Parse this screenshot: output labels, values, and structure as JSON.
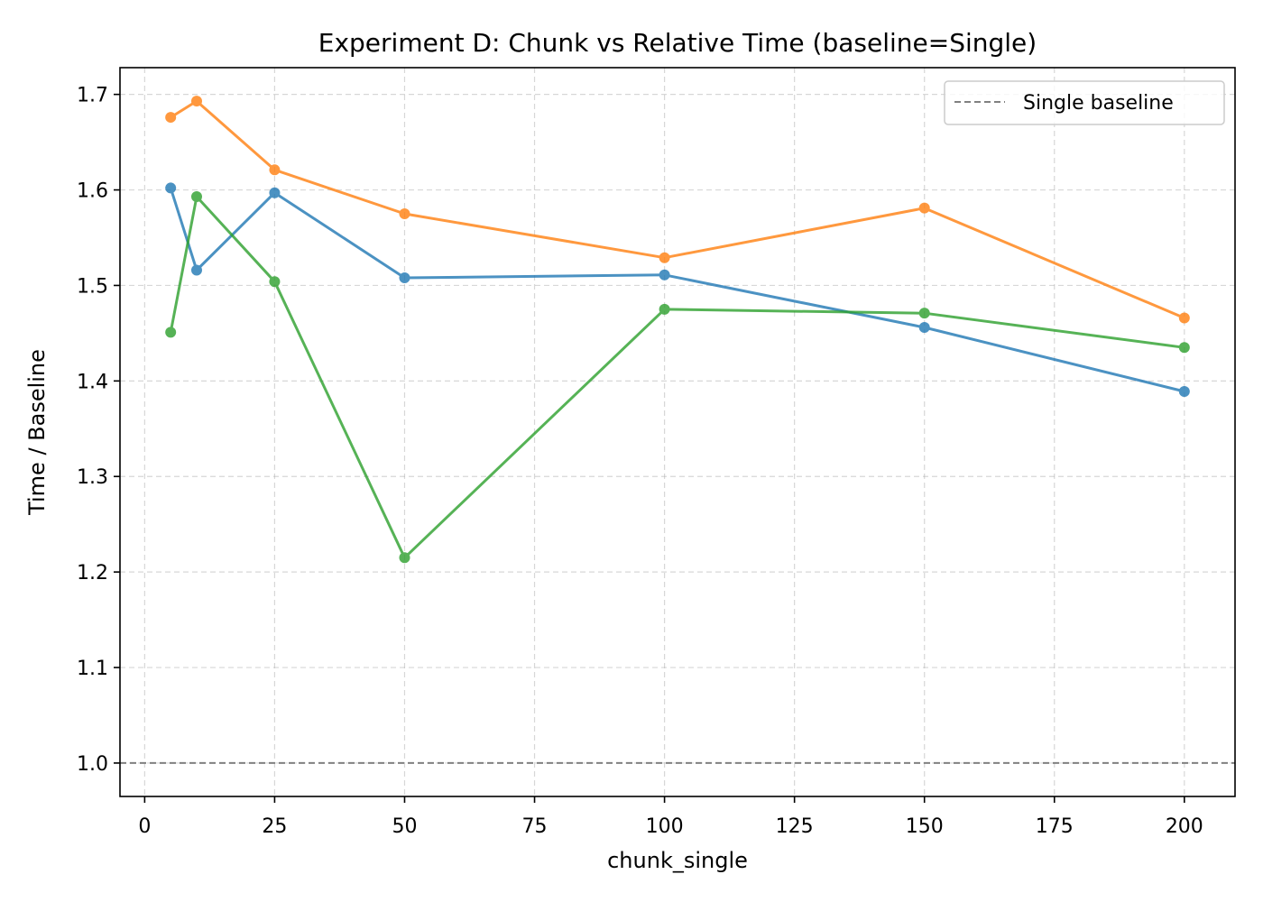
{
  "chart_data": {
    "type": "line",
    "title": "Experiment D: Chunk vs Relative Time (baseline=Single)",
    "xlabel": "chunk_single",
    "ylabel": "Time / Baseline",
    "xlim": [
      -4.75,
      209.75
    ],
    "ylim": [
      0.965,
      1.728
    ],
    "xticks": [
      0,
      25,
      50,
      75,
      100,
      125,
      150,
      175,
      200
    ],
    "yticks": [
      1.0,
      1.1,
      1.2,
      1.3,
      1.4,
      1.5,
      1.6,
      1.7
    ],
    "ytick_labels": [
      "1.0",
      "1.1",
      "1.2",
      "1.3",
      "1.4",
      "1.5",
      "1.6",
      "1.7"
    ],
    "grid": true,
    "x": [
      5,
      10,
      25,
      50,
      100,
      150,
      200
    ],
    "series": [
      {
        "color": "#1f77b4",
        "values": [
          1.602,
          1.516,
          1.597,
          1.508,
          1.511,
          1.456,
          1.389
        ]
      },
      {
        "color": "#ff7f0e",
        "values": [
          1.676,
          1.693,
          1.621,
          1.575,
          1.529,
          1.581,
          1.466
        ]
      },
      {
        "color": "#2ca02c",
        "values": [
          1.451,
          1.593,
          1.504,
          1.215,
          1.475,
          1.471,
          1.435
        ]
      }
    ],
    "baseline": {
      "value": 1.0,
      "color": "#808080",
      "style": "dashed"
    },
    "legend": {
      "position": "upper right",
      "entries": [
        {
          "label": "Single baseline",
          "style": "dashed",
          "color": "#808080"
        }
      ]
    }
  }
}
